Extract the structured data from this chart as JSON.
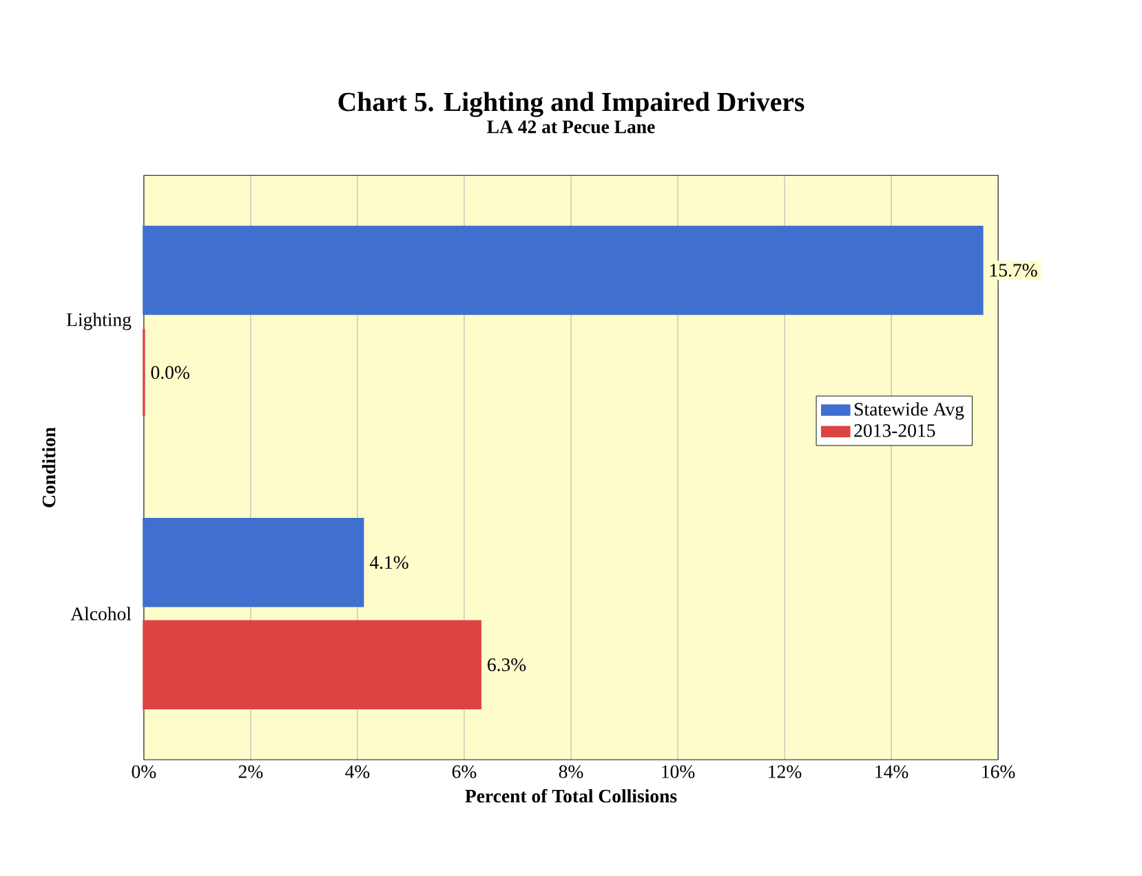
{
  "chart_data": {
    "type": "bar",
    "orientation": "horizontal",
    "title": "Chart 5. Lighting and Impaired Drivers",
    "subtitle": "LA 42 at Pecue Lane",
    "xlabel": "Percent of Total Collisions",
    "ylabel": "Condition",
    "categories": [
      "Lighting",
      "Alcohol"
    ],
    "series": [
      {
        "name": "Statewide Avg",
        "color": "#3f6fcf",
        "values": [
          15.7,
          4.1
        ],
        "value_labels": [
          "15.7%",
          "4.1%"
        ]
      },
      {
        "name": "2013-2015",
        "color": "#dc4444",
        "values": [
          0.0,
          6.3
        ],
        "value_labels": [
          "0.0%",
          "6.3%"
        ]
      }
    ],
    "xlim": [
      0,
      16
    ],
    "xticks": [
      {
        "value": 0,
        "label": "0%"
      },
      {
        "value": 2,
        "label": "2%"
      },
      {
        "value": 4,
        "label": "4%"
      },
      {
        "value": 6,
        "label": "6%"
      },
      {
        "value": 8,
        "label": "8%"
      },
      {
        "value": 10,
        "label": "10%"
      },
      {
        "value": 12,
        "label": "12%"
      },
      {
        "value": 14,
        "label": "14%"
      },
      {
        "value": 16,
        "label": "16%"
      }
    ],
    "grid": "x",
    "legend": "right"
  }
}
